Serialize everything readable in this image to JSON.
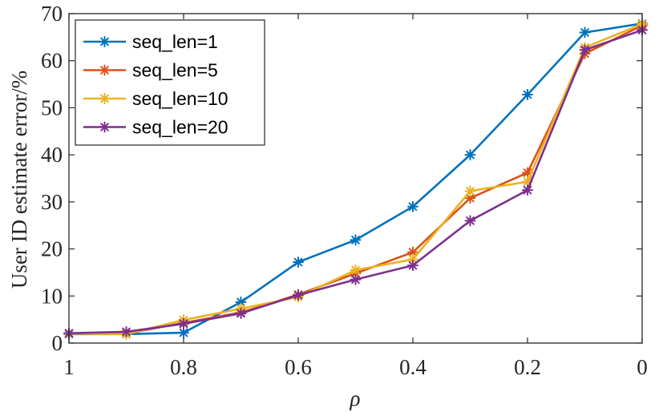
{
  "chart_data": {
    "type": "line",
    "title": "",
    "xlabel": "ρ",
    "ylabel": "User ID estimate error/%",
    "xlim": [
      1,
      0
    ],
    "ylim": [
      0,
      70
    ],
    "x_reversed": true,
    "grid": false,
    "legend_position": "top-left",
    "x": [
      1.0,
      0.9,
      0.8,
      0.7,
      0.6,
      0.5,
      0.4,
      0.3,
      0.2,
      0.1,
      0.0
    ],
    "x_ticks": [
      1,
      0.8,
      0.6,
      0.4,
      0.2,
      0
    ],
    "x_tick_labels": [
      "1",
      "0.8",
      "0.6",
      "0.4",
      "0.2",
      "0"
    ],
    "y_ticks": [
      0,
      10,
      20,
      30,
      40,
      50,
      60,
      70
    ],
    "y_tick_labels": [
      "0",
      "10",
      "20",
      "30",
      "40",
      "50",
      "60",
      "70"
    ],
    "series": [
      {
        "name": "seq_len=1",
        "color": "#0072BD",
        "values": [
          1.9,
          1.9,
          2.2,
          8.7,
          17.2,
          21.9,
          29.0,
          40.0,
          52.8,
          66.0,
          67.9
        ]
      },
      {
        "name": "seq_len=5",
        "color": "#D95319",
        "values": [
          2.0,
          2.0,
          4.3,
          6.5,
          10.3,
          14.8,
          19.3,
          30.8,
          36.2,
          61.5,
          67.5
        ]
      },
      {
        "name": "seq_len=10",
        "color": "#EDB120",
        "values": [
          2.0,
          1.9,
          4.9,
          7.3,
          9.8,
          15.5,
          17.8,
          32.3,
          34.3,
          62.8,
          67.8
        ]
      },
      {
        "name": "seq_len=20",
        "color": "#7E2F8E",
        "values": [
          2.1,
          2.4,
          4.1,
          6.3,
          10.2,
          13.5,
          16.5,
          26.0,
          32.5,
          62.3,
          66.5
        ]
      }
    ]
  }
}
